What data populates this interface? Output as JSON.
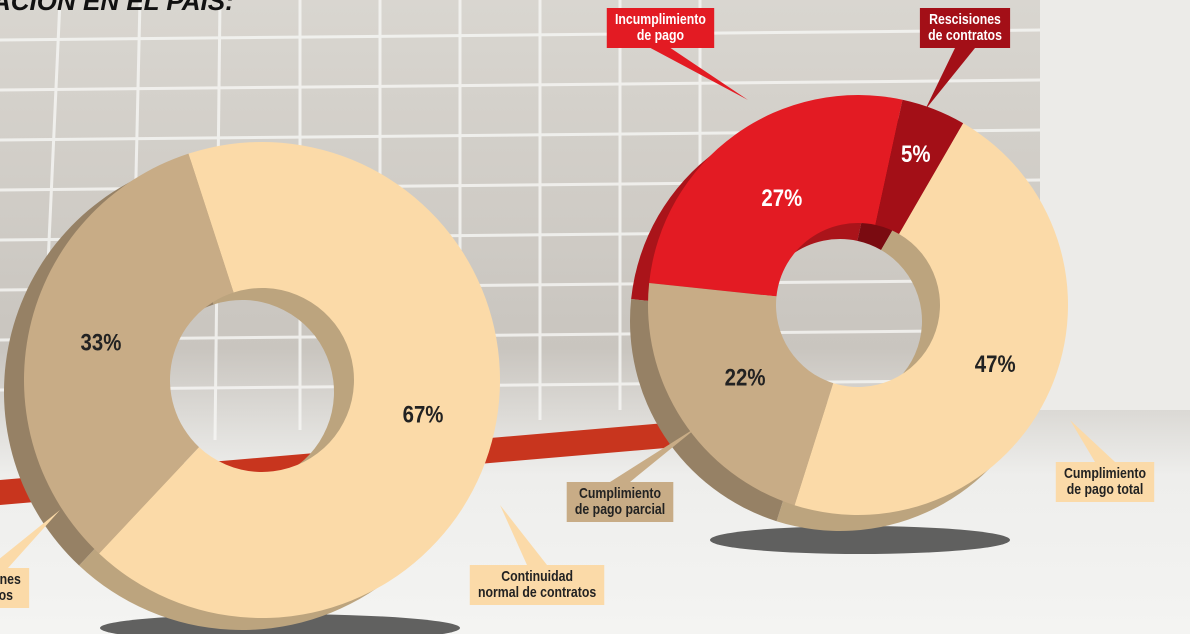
{
  "chart_data": [
    {
      "type": "pie",
      "title": "ACIÓN EN EL PAÍS:",
      "categories": [
        "Continuidad\nnormal de contratos",
        "aciones\nratos"
      ],
      "values": [
        67,
        33
      ],
      "value_labels": [
        "67%",
        "33%"
      ],
      "colors": [
        "#fbdaa8",
        "#c8ac86"
      ]
    },
    {
      "type": "pie",
      "categories": [
        "Incumplimiento\nde pago",
        "Rescisiones\nde contratos",
        "Cumplimiento\nde pago total",
        "Cumplimiento\nde pago parcial"
      ],
      "values": [
        27,
        5,
        47,
        22
      ],
      "value_labels": [
        "27%",
        "5%",
        "47%",
        "22%"
      ],
      "colors": [
        "#e31b23",
        "#a30f17",
        "#fbdaa8",
        "#c8ac86"
      ]
    }
  ]
}
